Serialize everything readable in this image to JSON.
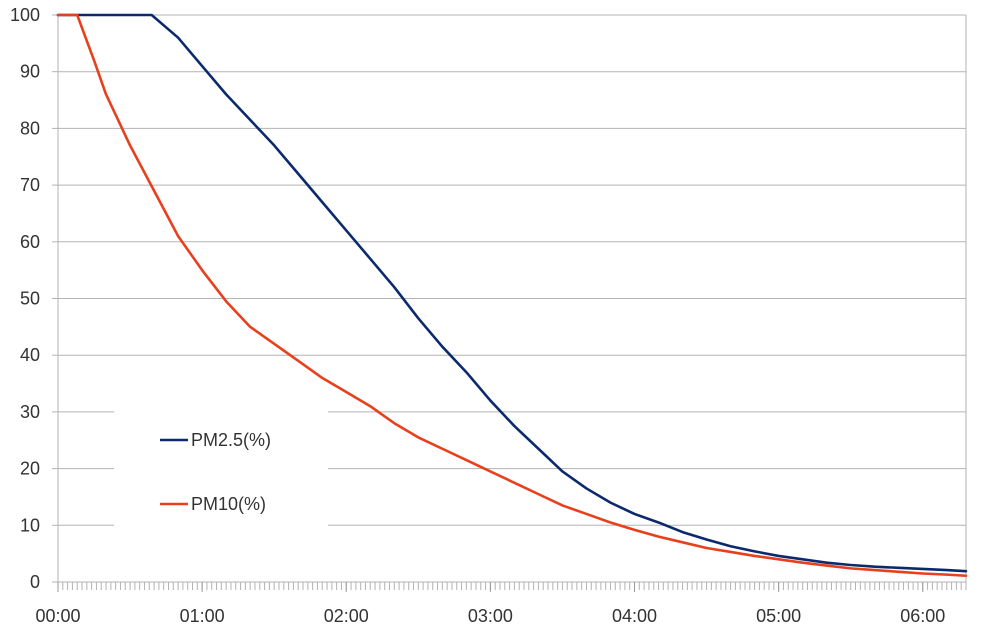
{
  "chart_data": {
    "type": "line",
    "title": "",
    "xlabel": "",
    "ylabel": "",
    "x_unit": "hh:mm elapsed",
    "xlim": [
      "00:00",
      "06:18"
    ],
    "ylim": [
      0,
      100
    ],
    "x_ticks": [
      "00:00",
      "01:00",
      "02:00",
      "03:00",
      "04:00",
      "05:00",
      "06:00"
    ],
    "y_ticks": [
      "0",
      "10",
      "20",
      "30",
      "40",
      "50",
      "60",
      "70",
      "80",
      "90",
      "100"
    ],
    "grid": "horizontal",
    "legend_position": "lower-left",
    "series": [
      {
        "name": "PM2.5(%)",
        "color": "#0b2a6e",
        "points": [
          [
            "00:00",
            100
          ],
          [
            "00:20",
            100
          ],
          [
            "00:30",
            100
          ],
          [
            "00:39",
            100
          ],
          [
            "00:50",
            96
          ],
          [
            "01:00",
            91
          ],
          [
            "01:10",
            86
          ],
          [
            "01:20",
            81.5
          ],
          [
            "01:30",
            77
          ],
          [
            "01:40",
            72
          ],
          [
            "01:50",
            67
          ],
          [
            "02:00",
            62
          ],
          [
            "02:10",
            57
          ],
          [
            "02:20",
            52
          ],
          [
            "02:30",
            46.5
          ],
          [
            "02:40",
            41.5
          ],
          [
            "02:50",
            37
          ],
          [
            "03:00",
            32
          ],
          [
            "03:10",
            27.5
          ],
          [
            "03:20",
            23.5
          ],
          [
            "03:30",
            19.5
          ],
          [
            "03:40",
            16.5
          ],
          [
            "03:50",
            14
          ],
          [
            "04:00",
            12
          ],
          [
            "04:10",
            10.5
          ],
          [
            "04:20",
            8.8
          ],
          [
            "04:30",
            7.5
          ],
          [
            "04:40",
            6.3
          ],
          [
            "04:50",
            5.4
          ],
          [
            "05:00",
            4.6
          ],
          [
            "05:10",
            4
          ],
          [
            "05:20",
            3.4
          ],
          [
            "05:30",
            3
          ],
          [
            "05:40",
            2.7
          ],
          [
            "05:50",
            2.5
          ],
          [
            "06:00",
            2.3
          ],
          [
            "06:10",
            2.1
          ],
          [
            "06:18",
            1.9
          ]
        ]
      },
      {
        "name": "PM10(%)",
        "color": "#e8401c",
        "points": [
          [
            "00:00",
            100
          ],
          [
            "00:08",
            100
          ],
          [
            "00:15",
            92
          ],
          [
            "00:20",
            86
          ],
          [
            "00:30",
            77
          ],
          [
            "00:40",
            69
          ],
          [
            "00:50",
            61
          ],
          [
            "01:00",
            55
          ],
          [
            "01:10",
            49.5
          ],
          [
            "01:20",
            45
          ],
          [
            "01:30",
            42
          ],
          [
            "01:40",
            39
          ],
          [
            "01:50",
            36
          ],
          [
            "02:00",
            33.5
          ],
          [
            "02:10",
            31
          ],
          [
            "02:20",
            28
          ],
          [
            "02:30",
            25.5
          ],
          [
            "02:40",
            23.5
          ],
          [
            "02:50",
            21.5
          ],
          [
            "03:00",
            19.5
          ],
          [
            "03:10",
            17.5
          ],
          [
            "03:20",
            15.5
          ],
          [
            "03:30",
            13.5
          ],
          [
            "03:40",
            12
          ],
          [
            "03:50",
            10.5
          ],
          [
            "04:00",
            9.2
          ],
          [
            "04:10",
            8
          ],
          [
            "04:20",
            7
          ],
          [
            "04:30",
            6
          ],
          [
            "04:40",
            5.3
          ],
          [
            "04:50",
            4.6
          ],
          [
            "05:00",
            4
          ],
          [
            "05:10",
            3.4
          ],
          [
            "05:20",
            2.9
          ],
          [
            "05:30",
            2.4
          ],
          [
            "05:40",
            2.1
          ],
          [
            "05:50",
            1.8
          ],
          [
            "06:00",
            1.5
          ],
          [
            "06:10",
            1.3
          ],
          [
            "06:18",
            1.1
          ]
        ]
      }
    ]
  }
}
